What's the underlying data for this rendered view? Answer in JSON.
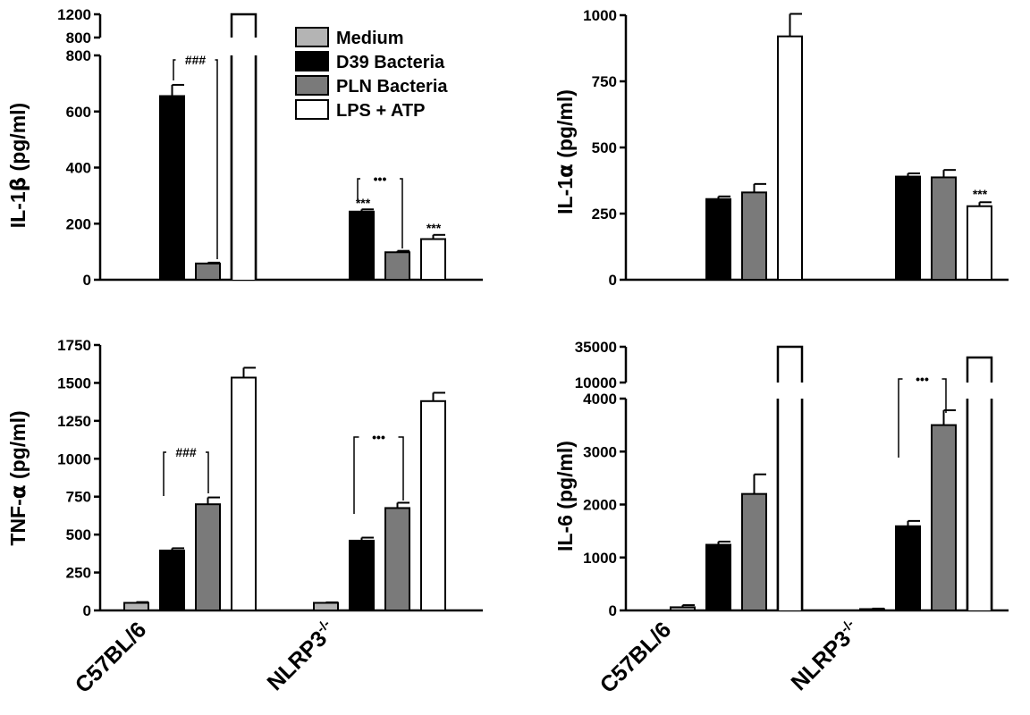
{
  "legend": [
    {
      "label": "Medium",
      "color": "#b4b4b4"
    },
    {
      "label": "D39 Bacteria",
      "color": "#000000"
    },
    {
      "label": "PLN Bacteria",
      "color": "#7a7a7a"
    },
    {
      "label": "LPS + ATP",
      "color": "#ffffff"
    }
  ],
  "chart_data": [
    {
      "type": "bar",
      "ylabel": "IL-1β (pg/ml)",
      "ylabel_parts": [
        "IL-1",
        "β",
        " (pg/ml)"
      ],
      "categories": [
        "C57BL/6",
        "NLRP3-/-"
      ],
      "axis_break": true,
      "lower_ylim": [
        0,
        800
      ],
      "lower_ticks": [
        "0",
        "200",
        "400",
        "600",
        "800"
      ],
      "upper_ticks": [
        "800",
        "1200"
      ],
      "series": [
        {
          "name": "Medium",
          "values": [
            null,
            null
          ],
          "errors": [
            null,
            null
          ]
        },
        {
          "name": "D39 Bacteria",
          "values": [
            655,
            243
          ],
          "errors": [
            40,
            8
          ]
        },
        {
          "name": "PLN Bacteria",
          "values": [
            58,
            98
          ],
          "errors": [
            3,
            5
          ]
        },
        {
          "name": "LPS + ATP",
          "values": [
            1200,
            145
          ],
          "errors": [
            null,
            15
          ],
          "broken": [
            true,
            false
          ]
        }
      ],
      "annotations": [
        {
          "text": "###",
          "type": "bracket"
        },
        {
          "text": "•••",
          "type": "bracket"
        },
        {
          "text": "***"
        },
        {
          "text": "***"
        }
      ]
    },
    {
      "type": "bar",
      "ylabel": "IL-1α (pg/ml)",
      "ylabel_parts": [
        "IL-1",
        "α",
        " (pg/ml)"
      ],
      "categories": [
        "C57BL/6",
        "NLRP3-/-"
      ],
      "ylim": [
        0,
        1000
      ],
      "ticks": [
        "0",
        "250",
        "500",
        "750",
        "1000"
      ],
      "series": [
        {
          "name": "Medium",
          "values": [
            null,
            null
          ],
          "errors": [
            null,
            null
          ]
        },
        {
          "name": "D39 Bacteria",
          "values": [
            305,
            390
          ],
          "errors": [
            10,
            12
          ]
        },
        {
          "name": "PLN Bacteria",
          "values": [
            330,
            387
          ],
          "errors": [
            32,
            28
          ]
        },
        {
          "name": "LPS + ATP",
          "values": [
            920,
            278
          ],
          "errors": [
            85,
            15
          ]
        }
      ],
      "annotations": [
        {
          "text": "***"
        }
      ]
    },
    {
      "type": "bar",
      "ylabel": "TNF-α (pg/ml)",
      "ylabel_parts": [
        "TNF-",
        "α",
        " (pg/ml)"
      ],
      "categories": [
        "C57BL/6",
        "NLRP3-/-"
      ],
      "ylim": [
        0,
        1750
      ],
      "ticks": [
        "0",
        "250",
        "500",
        "750",
        "1000",
        "1250",
        "1500",
        "1750"
      ],
      "series": [
        {
          "name": "Medium",
          "values": [
            50,
            50
          ],
          "errors": [
            5,
            3
          ]
        },
        {
          "name": "D39 Bacteria",
          "values": [
            395,
            460
          ],
          "errors": [
            15,
            20
          ]
        },
        {
          "name": "PLN Bacteria",
          "values": [
            700,
            675
          ],
          "errors": [
            45,
            35
          ]
        },
        {
          "name": "LPS + ATP",
          "values": [
            1535,
            1380
          ],
          "errors": [
            65,
            55
          ]
        }
      ],
      "annotations": [
        {
          "text": "###",
          "type": "bracket"
        },
        {
          "text": "•••",
          "type": "bracket"
        }
      ]
    },
    {
      "type": "bar",
      "ylabel": "IL-6 (pg/ml)",
      "ylabel_parts": [
        "IL-6",
        "",
        " (pg/ml)"
      ],
      "categories": [
        "C57BL/6",
        "NLRP3-/-"
      ],
      "axis_break": true,
      "lower_ylim": [
        0,
        4000
      ],
      "lower_ticks": [
        "0",
        "1000",
        "2000",
        "3000",
        "4000"
      ],
      "upper_ticks": [
        "10000",
        "35000"
      ],
      "series": [
        {
          "name": "Medium",
          "values": [
            60,
            25
          ],
          "errors": [
            40,
            10
          ]
        },
        {
          "name": "D39 Bacteria",
          "values": [
            1240,
            1590
          ],
          "errors": [
            60,
            100
          ]
        },
        {
          "name": "PLN Bacteria",
          "values": [
            2200,
            3500
          ],
          "errors": [
            370,
            280
          ]
        },
        {
          "name": "LPS + ATP",
          "values": [
            35000,
            31000
          ],
          "errors": [
            null,
            null
          ],
          "broken": [
            true,
            true
          ]
        }
      ],
      "annotations": [
        {
          "text": "•••",
          "type": "bracket"
        }
      ]
    }
  ]
}
